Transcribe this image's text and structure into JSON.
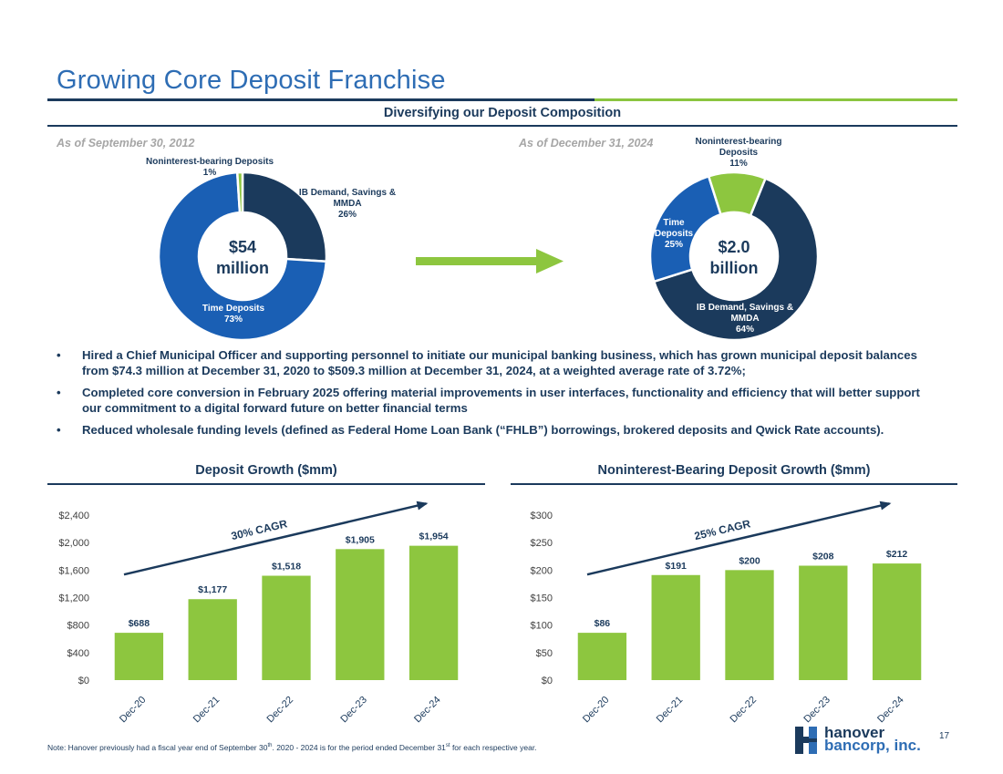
{
  "header": {
    "title": "Growing Core Deposit Franchise",
    "subtitle": "Diversifying our Deposit Composition"
  },
  "colors": {
    "navy": "#1b3a5c",
    "blue": "#1a5fb4",
    "green": "#8dc63f",
    "title_blue": "#2e6db4"
  },
  "composition": {
    "left": {
      "as_of": "As of September 30, 2012",
      "center_line1": "$54",
      "center_line2": "million",
      "segments": [
        {
          "name_line1": "IB Demand, Savings &",
          "name_line2": "MMDA",
          "pct_label": "26%",
          "value": 26,
          "color": "#1b3a5c"
        },
        {
          "name_line1": "Time Deposits",
          "name_line2": "",
          "pct_label": "73%",
          "value": 73,
          "color": "#1a5fb4"
        },
        {
          "name_line1": "Noninterest-bearing Deposits",
          "name_line2": "",
          "pct_label": "1%",
          "value": 1,
          "color": "#8dc63f"
        }
      ]
    },
    "right": {
      "as_of": "As of December 31, 2024",
      "center_line1": "$2.0",
      "center_line2": "billion",
      "segments": [
        {
          "name_line1": "IB Demand, Savings &",
          "name_line2": "MMDA",
          "pct_label": "64%",
          "value": 64,
          "color": "#1b3a5c"
        },
        {
          "name_line1": "Time",
          "name_line2": "Deposits",
          "pct_label": "25%",
          "value": 25,
          "color": "#1a5fb4"
        },
        {
          "name_line1": "Noninterest-bearing",
          "name_line2": "Deposits",
          "pct_label": "11%",
          "value": 11,
          "color": "#8dc63f"
        }
      ]
    }
  },
  "bullets": [
    {
      "marker": "•",
      "text": "Hired a Chief Municipal Officer and supporting personnel to initiate our municipal banking business, which has grown municipal deposit balances from $74.3 million at December 31, 2020 to $509.3 million at December 31, 2024, at a weighted average rate of 3.72%;"
    },
    {
      "marker": "•",
      "text": "Completed core conversion in February 2025 offering material improvements in user interfaces, functionality and efficiency that will better support our commitment to a digital forward future on better financial terms"
    },
    {
      "marker": "•",
      "text": "Reduced wholesale funding levels (defined as Federal Home Loan Bank (“FHLB”) borrowings, brokered deposits and Qwick Rate accounts)."
    }
  ],
  "chart_data": [
    {
      "type": "bar",
      "title": "Deposit Growth ($mm)",
      "categories": [
        "Dec-20",
        "Dec-21",
        "Dec-22",
        "Dec-23",
        "Dec-24"
      ],
      "values": [
        688,
        1177,
        1518,
        1905,
        1954
      ],
      "value_labels": [
        "$688",
        "$1,177",
        "$1,518",
        "$1,905",
        "$1,954"
      ],
      "yticks": [
        0,
        400,
        800,
        1200,
        1600,
        2000,
        2400
      ],
      "ytick_labels": [
        "$0",
        "$400",
        "$800",
        "$1,200",
        "$1,600",
        "$2,000",
        "$2,400"
      ],
      "ylim": [
        0,
        2400
      ],
      "annotation": "30% CAGR",
      "xlabel": "",
      "ylabel": ""
    },
    {
      "type": "bar",
      "title": "Noninterest-Bearing Deposit Growth ($mm)",
      "categories": [
        "Dec-20",
        "Dec-21",
        "Dec-22",
        "Dec-23",
        "Dec-24"
      ],
      "values": [
        86,
        191,
        200,
        208,
        212
      ],
      "value_labels": [
        "$86",
        "$191",
        "$200",
        "$208",
        "$212"
      ],
      "yticks": [
        0,
        50,
        100,
        150,
        200,
        250,
        300
      ],
      "ytick_labels": [
        "$0",
        "$50",
        "$100",
        "$150",
        "$200",
        "$250",
        "$300"
      ],
      "ylim": [
        0,
        300
      ],
      "annotation": "25% CAGR",
      "xlabel": "",
      "ylabel": ""
    }
  ],
  "footer": {
    "note_part1": "Note: Hanover previously had a fiscal year end of September 30",
    "note_sup1": "th",
    "note_part2": ". 2020 - 2024 is for the period ended December 31",
    "note_sup2": "st",
    "note_part3": " for each respective year.",
    "page_number": "17",
    "logo_line1": "hanover",
    "logo_line2": "bancorp, inc."
  }
}
